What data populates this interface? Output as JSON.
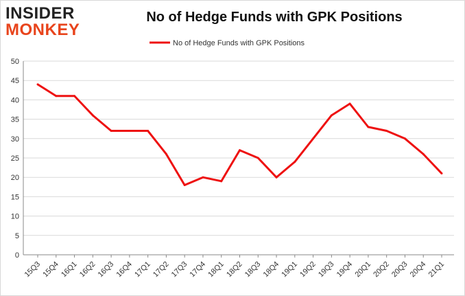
{
  "logo": {
    "line1": "INSIDER",
    "line2": "MONKEY"
  },
  "chart_data": {
    "type": "line",
    "title": "No of Hedge Funds with GPK Positions",
    "xlabel": "",
    "ylabel": "",
    "categories": [
      "15Q3",
      "15Q4",
      "16Q1",
      "16Q2",
      "16Q3",
      "16Q4",
      "17Q1",
      "17Q2",
      "17Q3",
      "17Q4",
      "18Q1",
      "18Q2",
      "18Q3",
      "18Q4",
      "19Q1",
      "19Q2",
      "19Q3",
      "19Q4",
      "20Q1",
      "20Q2",
      "20Q3",
      "20Q4",
      "21Q1"
    ],
    "series": [
      {
        "name": "No of Hedge Funds with GPK Positions",
        "values": [
          44,
          41,
          41,
          36,
          32,
          32,
          32,
          26,
          18,
          20,
          19,
          27,
          25,
          20,
          24,
          30,
          36,
          39,
          33,
          32,
          30,
          26,
          21
        ],
        "color": "#ee1111"
      }
    ],
    "ylim": [
      0,
      50
    ],
    "yticks": [
      0,
      5,
      10,
      15,
      20,
      25,
      30,
      35,
      40,
      45,
      50
    ],
    "grid": true,
    "legend_position": "top-center"
  }
}
